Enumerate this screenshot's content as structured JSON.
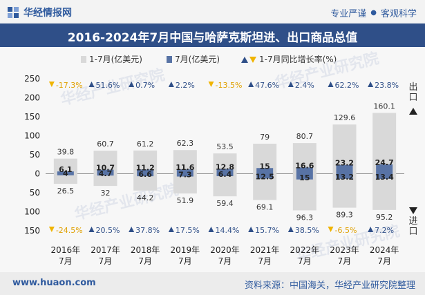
{
  "header": {
    "brand_name": "华经情报网",
    "tag1": "专业严谨",
    "tag_sep": "●",
    "tag2": "客观科学"
  },
  "title": "2016-2024年7月中国与哈萨克斯坦进、出口商品总值",
  "legend": {
    "cumulative": "1-7月(亿美元)",
    "month": "7月(亿美元)",
    "growth": "1-7月同比增长率(%)"
  },
  "side_labels": {
    "export": "出口",
    "import": "进口"
  },
  "footer": {
    "site": "www.huaon.com",
    "source": "资料来源：中国海关，华经产业研究院整理"
  },
  "colors": {
    "cumulative_bar": "#d9d9d9",
    "month_bar": "#5873a5",
    "up_triangle": "#2f4f88",
    "down_triangle": "#f0b400",
    "title_bg": "#2f4f88"
  },
  "chart_data": {
    "type": "bar",
    "categories": [
      "2016年\n7月",
      "2017年\n7月",
      "2018年\n7月",
      "2019年\n7月",
      "2020年\n7月",
      "2021年\n7月",
      "2022年\n7月",
      "2023年\n7月",
      "2024年\n7月"
    ],
    "ylim": [
      -150,
      250
    ],
    "yticks": [
      -150,
      -100,
      -50,
      0,
      50,
      100,
      150,
      200,
      250
    ],
    "y_tick_labels": [
      "150",
      "100",
      "50",
      "0",
      "50",
      "100",
      "150",
      "200",
      "250"
    ],
    "series": [
      {
        "name": "出口 1-7月(亿美元)",
        "values": [
          39.8,
          60.7,
          61.2,
          62.3,
          53.5,
          79,
          80.7,
          129.6,
          160.1
        ]
      },
      {
        "name": "出口 7月(亿美元)",
        "values": [
          6.1,
          10.7,
          11.2,
          11.6,
          12.8,
          15,
          16.6,
          23.2,
          24.7
        ]
      },
      {
        "name": "进口 1-7月(亿美元)",
        "values": [
          26.5,
          32,
          44.2,
          51.9,
          59.4,
          69.1,
          96.3,
          89.3,
          95.2
        ]
      },
      {
        "name": "进口 7月(亿美元)",
        "values": [
          4,
          4.7,
          6.6,
          7.3,
          6.4,
          12.5,
          15,
          13.2,
          13.4
        ]
      }
    ],
    "export_growth": [
      "-17.3%",
      "51.6%",
      "0.7%",
      "2.2%",
      "-13.5%",
      "47.6%",
      "2.4%",
      "62.2%",
      "23.8%"
    ],
    "import_growth": [
      "-24.5%",
      "20.5%",
      "37.8%",
      "17.5%",
      "14.4%",
      "15.7%",
      "38.5%",
      "-6.5%",
      "7.2%"
    ]
  }
}
